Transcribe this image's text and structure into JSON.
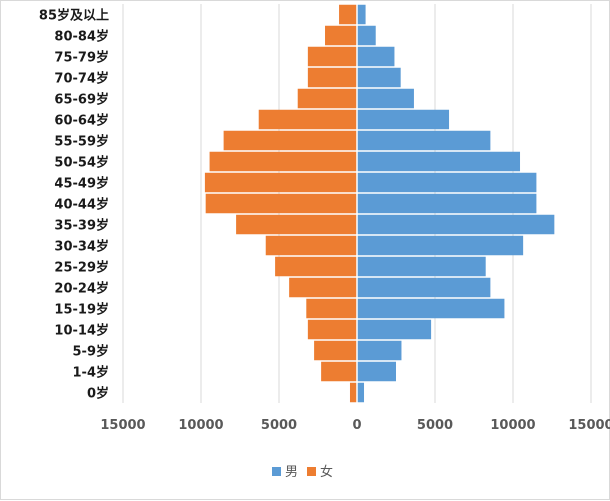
{
  "chart_data": {
    "type": "bar",
    "orientation": "horizontal",
    "title": "",
    "xlabel": "",
    "ylabel": "",
    "xlim": [
      -15000,
      15000
    ],
    "x_ticks": [
      -15000,
      -10000,
      -5000,
      0,
      5000,
      10000,
      15000
    ],
    "x_tick_labels": [
      "15000",
      "10000",
      "5000",
      "0",
      "5000",
      "10000",
      "15000"
    ],
    "grid": true,
    "legend_position": "bottom",
    "categories": [
      "0岁",
      "1-4岁",
      "5-9岁",
      "10-14岁",
      "15-19岁",
      "20-24岁",
      "25-29岁",
      "30-34岁",
      "35-39岁",
      "40-44岁",
      "45-49岁",
      "50-54岁",
      "55-59岁",
      "60-64岁",
      "65-69岁",
      "70-74岁",
      "75-79岁",
      "80-84岁",
      "85岁及以上"
    ],
    "series": [
      {
        "name": "男",
        "color": "#5b9bd5",
        "values": [
          450,
          2500,
          2850,
          4750,
          9450,
          8550,
          8250,
          10650,
          12650,
          11500,
          11500,
          10450,
          8550,
          5900,
          3650,
          2800,
          2400,
          1200,
          550
        ]
      },
      {
        "name": "女",
        "color": "#ed7d31",
        "values": [
          -450,
          -2300,
          -2750,
          -3150,
          -3250,
          -4350,
          -5250,
          -5850,
          -7750,
          -9700,
          -9750,
          -9450,
          -8550,
          -6300,
          -3800,
          -3150,
          -3150,
          -2050,
          -1150
        ]
      }
    ]
  }
}
